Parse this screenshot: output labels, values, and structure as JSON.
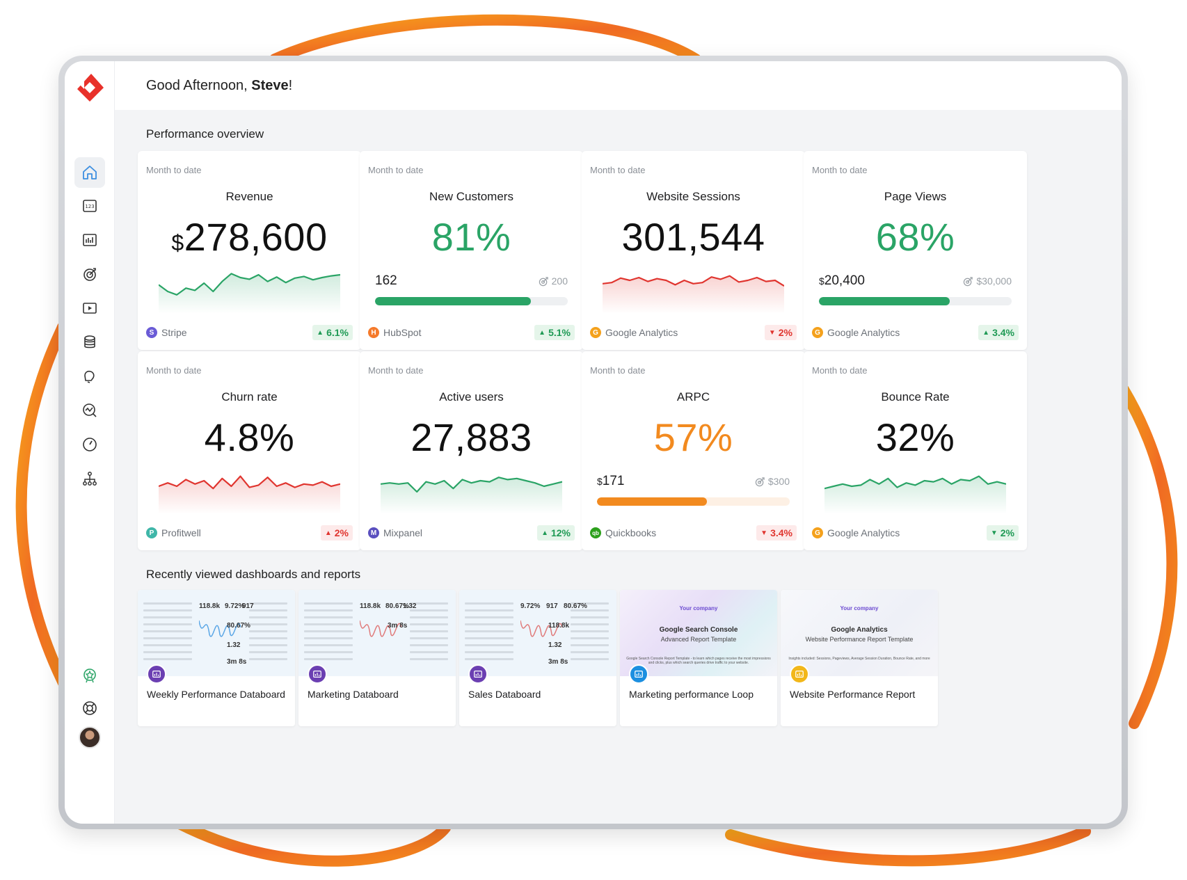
{
  "header": {
    "greeting_prefix": "Good Afternoon,",
    "user_name": "Steve",
    "greeting_suffix": "!"
  },
  "sections": {
    "performance": "Performance overview",
    "recent": "Recently viewed dashboards and reports"
  },
  "sidebar": {
    "items": [
      {
        "name": "home-icon",
        "active": true
      },
      {
        "name": "numbers-icon"
      },
      {
        "name": "dashboard-icon"
      },
      {
        "name": "goal-target-icon"
      },
      {
        "name": "presentation-icon"
      },
      {
        "name": "database-icon"
      },
      {
        "name": "alerts-icon"
      },
      {
        "name": "analytics-search-icon"
      },
      {
        "name": "speedometer-icon"
      },
      {
        "name": "hierarchy-icon"
      }
    ],
    "bottom": [
      {
        "name": "badge-icon"
      },
      {
        "name": "help-icon"
      }
    ]
  },
  "metrics": [
    {
      "period": "Month to date",
      "title": "Revenue",
      "currency": "$",
      "value": "278,600",
      "value_color": "dark",
      "chart": {
        "type": "line",
        "color": "#2aa466",
        "values": [
          42,
          30,
          24,
          36,
          32,
          45,
          30,
          48,
          62,
          55,
          52,
          60,
          48,
          56,
          46,
          54,
          57,
          51,
          55,
          58,
          60
        ]
      },
      "source": "Stripe",
      "source_color": "#6a5bd6",
      "source_glyph": "S",
      "change": "6.1%",
      "direction": "up"
    },
    {
      "period": "Month to date",
      "title": "New Customers",
      "value": "81%",
      "value_color": "green",
      "progress": {
        "current": "162",
        "target": "200",
        "fraction": 0.81,
        "color": "#2aa466"
      },
      "source": "HubSpot",
      "source_color": "#f57a2b",
      "source_glyph": "H",
      "change": "5.1%",
      "direction": "up"
    },
    {
      "period": "Month to date",
      "title": "Website Sessions",
      "value": "301,544",
      "value_color": "dark",
      "chart": {
        "type": "line",
        "color": "#e0352f",
        "values": [
          44,
          46,
          54,
          50,
          55,
          48,
          53,
          50,
          42,
          50,
          44,
          46,
          56,
          52,
          58,
          47,
          50,
          55,
          48,
          50,
          40
        ]
      },
      "source": "Google Analytics",
      "source_color": "#f4a11c",
      "source_glyph": "G",
      "change": "2%",
      "direction": "down"
    },
    {
      "period": "Month to date",
      "title": "Page Views",
      "value": "68%",
      "value_color": "green",
      "progress": {
        "current_currency": "$",
        "current": "20,400",
        "target": "$30,000",
        "fraction": 0.68,
        "color": "#2aa466"
      },
      "source": "Google Analytics",
      "source_color": "#f4a11c",
      "source_glyph": "G",
      "change": "3.4%",
      "direction": "up"
    },
    {
      "period": "Month to date",
      "title": "Churn rate",
      "value": "4.8%",
      "value_color": "dark",
      "chart": {
        "type": "line",
        "color": "#e0352f",
        "values": [
          40,
          46,
          40,
          52,
          44,
          50,
          36,
          54,
          40,
          58,
          38,
          42,
          56,
          40,
          46,
          38,
          44,
          42,
          48,
          40,
          44
        ]
      },
      "source": "Profitwell",
      "source_color": "#3fb6a8",
      "source_glyph": "P",
      "change": "2%",
      "direction": "up_red"
    },
    {
      "period": "Month to date",
      "title": "Active users",
      "value": "27,883",
      "value_color": "dark",
      "chart": {
        "type": "line",
        "color": "#2aa466",
        "values": [
          44,
          46,
          44,
          46,
          30,
          48,
          44,
          50,
          36,
          52,
          46,
          50,
          48,
          56,
          52,
          54,
          50,
          46,
          40,
          44,
          48
        ]
      },
      "source": "Mixpanel",
      "source_color": "#5a4fbf",
      "source_glyph": "M",
      "change": "12%",
      "direction": "up"
    },
    {
      "period": "Month to date",
      "title": "ARPC",
      "value": "57%",
      "value_color": "orange",
      "progress": {
        "current_currency": "$",
        "current": "171",
        "target": "$300",
        "fraction": 0.57,
        "color": "#f28a1f"
      },
      "source": "Quickbooks",
      "source_color": "#2ca01c",
      "source_glyph": "qb",
      "change": "3.4%",
      "direction": "down"
    },
    {
      "period": "Month to date",
      "title": "Bounce Rate",
      "value": "32%",
      "value_color": "dark",
      "chart": {
        "type": "line",
        "color": "#2aa466",
        "values": [
          36,
          40,
          44,
          40,
          42,
          52,
          44,
          54,
          38,
          46,
          42,
          50,
          48,
          54,
          44,
          52,
          50,
          58,
          44,
          48,
          44
        ]
      },
      "source": "Google Analytics",
      "source_color": "#f4a11c",
      "source_glyph": "G",
      "change": "2%",
      "direction": "down_green"
    }
  ],
  "recent": [
    {
      "title": "Weekly Performance Databoard",
      "kind": "databoard",
      "icon_color": "#6b3fb2",
      "thumb": {
        "numbers": [
          "118.8k",
          "9.72%",
          "917",
          "80.67%",
          "1.32",
          "3m 8s"
        ]
      }
    },
    {
      "title": "Marketing Databoard",
      "kind": "databoard",
      "icon_color": "#6b3fb2",
      "thumb": {
        "numbers": [
          "118.8k",
          "80.67%",
          "1.32",
          "3m 8s"
        ]
      }
    },
    {
      "title": "Sales Databoard",
      "kind": "databoard",
      "icon_color": "#6b3fb2",
      "thumb": {
        "numbers": [
          "9.72%",
          "917",
          "80.67%",
          "118.8k",
          "1.32",
          "3m 8s"
        ]
      }
    },
    {
      "title": "Marketing performance Loop",
      "kind": "loop",
      "icon_color": "#1c8fe0",
      "thumb": {
        "company": "Your company",
        "heading": "Google Search Console",
        "subheading": "Advanced Report Template",
        "caption": "Google Search Console Report Template - to learn which pages receive the most impressions and clicks, plus which search queries drive traffic to your website."
      }
    },
    {
      "title": "Website Performance Report",
      "kind": "report",
      "icon_color": "#f2b71a",
      "thumb": {
        "company": "Your company",
        "heading": "Google Analytics",
        "subheading": "Website Performance Report Template",
        "caption": "Insights included: Sessions, Pageviews, Average Session Duration, Bounce Rate, and more"
      }
    }
  ]
}
